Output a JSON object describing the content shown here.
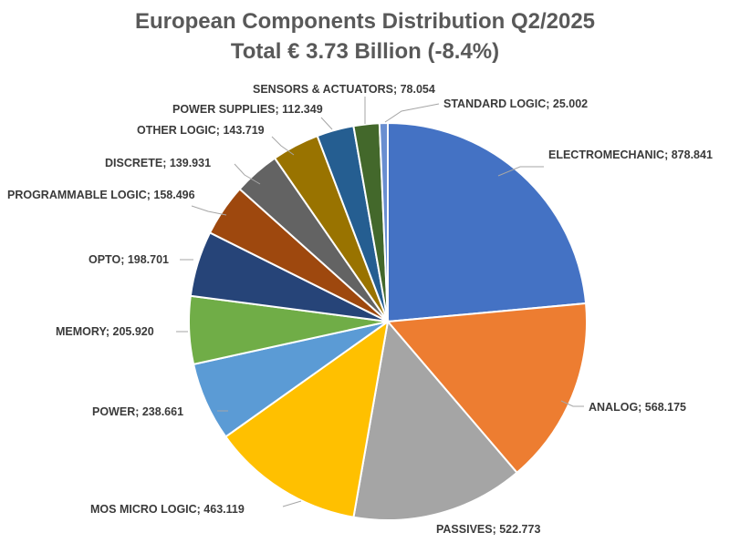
{
  "chart_data": {
    "type": "pie",
    "title": "European Components Distribution Q2/2025",
    "subtitle": "Total € 3.73 Billion (-8.4%)",
    "slices": [
      {
        "name": "ELECTROMECHANIC",
        "value": 878.841,
        "label": "ELECTROMECHANIC; 878.841",
        "color": "#4472C4"
      },
      {
        "name": "ANALOG",
        "value": 568.175,
        "label": "ANALOG;  568.175",
        "color": "#ED7D31"
      },
      {
        "name": "PASSIVES",
        "value": 522.773,
        "label": "PASSIVES; 522.773",
        "color": "#A5A5A5"
      },
      {
        "name": "MOS MICRO LOGIC",
        "value": 463.119,
        "label": "MOS MICRO LOGIC; 463.119",
        "color": "#FFC000"
      },
      {
        "name": "POWER",
        "value": 238.661,
        "label": "POWER; 238.661",
        "color": "#5B9BD5"
      },
      {
        "name": "MEMORY",
        "value": 205.92,
        "label": "MEMORY; 205.920",
        "color": "#70AD47"
      },
      {
        "name": "OPTO",
        "value": 198.701,
        "label": "OPTO; 198.701",
        "color": "#264478"
      },
      {
        "name": "PROGRAMMABLE LOGIC",
        "value": 158.496,
        "label": "PROGRAMMABLE LOGIC; 158.496",
        "color": "#9E480E"
      },
      {
        "name": "DISCRETE",
        "value": 139.931,
        "label": "DISCRETE; 139.931",
        "color": "#636363"
      },
      {
        "name": "OTHER LOGIC",
        "value": 143.719,
        "label": "OTHER LOGIC; 143.719",
        "color": "#997300"
      },
      {
        "name": "POWER SUPPLIES",
        "value": 112.349,
        "label": "POWER SUPPLIES; 112.349",
        "color": "#255E91"
      },
      {
        "name": "SENSORS & ACTUATORS",
        "value": 78.054,
        "label": "SENSORS & ACTUATORS; 78.054",
        "color": "#43682B"
      },
      {
        "name": "STANDARD LOGIC",
        "value": 25.002,
        "label": "STANDARD LOGIC; 25.002",
        "color": "#698ED0"
      }
    ],
    "start_angle_deg": 0,
    "direction": "clockwise",
    "legend": "none"
  }
}
